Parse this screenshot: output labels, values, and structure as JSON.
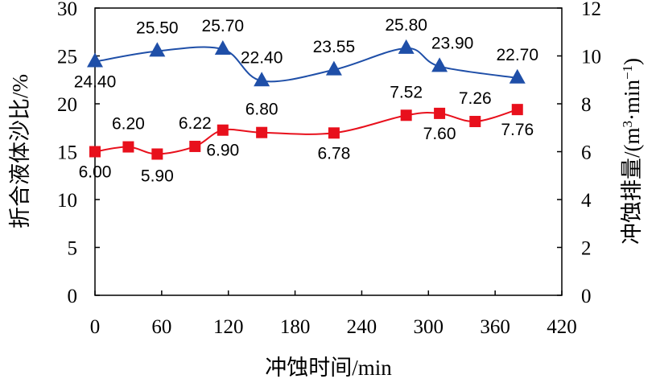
{
  "chart_data": {
    "type": "line",
    "x": [
      0,
      30,
      56,
      90,
      115,
      150,
      215,
      280,
      310,
      342,
      380
    ],
    "xlabel": "冲蚀时间/min",
    "ylabel_left": "折合液体沙比/%",
    "ylabel_right_prefix": "冲蚀排量/(m",
    "ylabel_right_sup1": "3",
    "ylabel_right_mid": "·min",
    "ylabel_right_sup2": "−1",
    "ylabel_right_suffix": ")",
    "xlim": [
      0,
      420
    ],
    "xticks": [
      "0",
      "60",
      "120",
      "180",
      "240",
      "300",
      "360",
      "420"
    ],
    "ylim_left": [
      0,
      30
    ],
    "yticks_left": [
      "0",
      "5",
      "10",
      "15",
      "20",
      "25",
      "30"
    ],
    "ylim_right": [
      0,
      12
    ],
    "yticks_right": [
      "0",
      "2",
      "4",
      "6",
      "8",
      "10",
      "12"
    ],
    "series": [
      {
        "name": "折合液体沙比",
        "axis": "left",
        "marker": "triangle",
        "color": "#1f4fa8",
        "x": [
          0,
          56,
          115,
          150,
          215,
          280,
          310,
          380
        ],
        "values": [
          24.4,
          25.5,
          25.7,
          22.4,
          23.55,
          25.8,
          23.9,
          22.7
        ],
        "labels": [
          "24.40",
          "25.50",
          "25.70",
          "22.40",
          "23.55",
          "25.80",
          "23.90",
          "22.70"
        ]
      },
      {
        "name": "冲蚀排量",
        "axis": "right",
        "marker": "square",
        "color": "#e8101c",
        "x": [
          0,
          30,
          56,
          90,
          115,
          150,
          215,
          280,
          310,
          342,
          380
        ],
        "values": [
          6.0,
          6.2,
          5.9,
          6.22,
          6.9,
          6.8,
          6.78,
          7.52,
          7.6,
          7.26,
          7.76
        ],
        "labels": [
          "6.00",
          "6.20",
          "5.90",
          "6.22",
          "6.90",
          "6.80",
          "6.78",
          "7.52",
          "7.60",
          "7.26",
          "7.76"
        ]
      }
    ]
  }
}
